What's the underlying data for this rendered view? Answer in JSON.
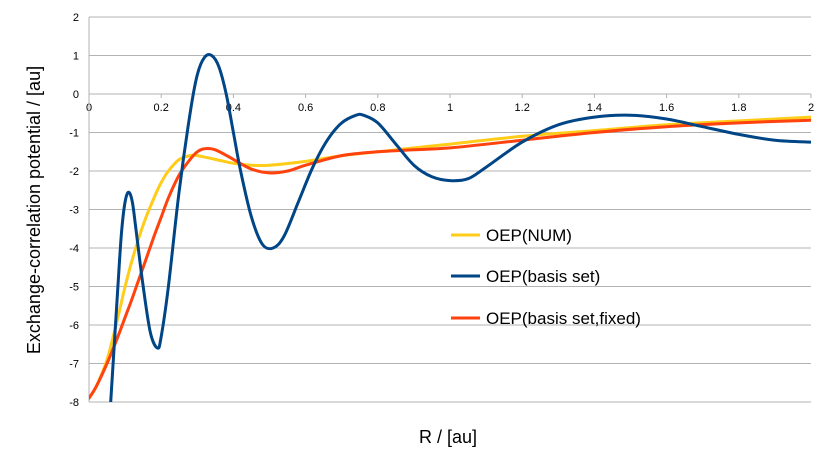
{
  "chart_data": {
    "type": "line",
    "title": "",
    "xlabel": "R / [au]",
    "ylabel": "Exchange-correlation potential / [au]",
    "xlim": [
      0,
      2
    ],
    "ylim": [
      -8,
      2
    ],
    "x_ticks": [
      "0",
      "0.2",
      "0.4",
      "0.6",
      "0.8",
      "1",
      "1.2",
      "1.4",
      "1.6",
      "1.8",
      "2"
    ],
    "y_ticks": [
      "2",
      "1",
      "0",
      "-1",
      "-2",
      "-3",
      "-4",
      "-5",
      "-6",
      "-7",
      "-8"
    ],
    "grid": "horizontal",
    "legend_position": "center-right",
    "series": [
      {
        "name": "OEP(NUM)",
        "color": "#ffcc1a",
        "x": [
          0,
          0.02,
          0.05,
          0.08,
          0.1,
          0.12,
          0.15,
          0.18,
          0.2,
          0.22,
          0.25,
          0.28,
          0.3,
          0.35,
          0.4,
          0.45,
          0.5,
          0.6,
          0.7,
          0.8,
          0.9,
          1.0,
          1.2,
          1.4,
          1.6,
          1.8,
          2.0
        ],
        "y": [
          -7.9,
          -7.6,
          -6.9,
          -5.8,
          -5.0,
          -4.3,
          -3.4,
          -2.7,
          -2.3,
          -2.0,
          -1.7,
          -1.6,
          -1.6,
          -1.7,
          -1.8,
          -1.85,
          -1.85,
          -1.75,
          -1.6,
          -1.5,
          -1.4,
          -1.3,
          -1.1,
          -0.95,
          -0.8,
          -0.7,
          -0.6
        ]
      },
      {
        "name": "OEP(basis set)",
        "color": "#004586",
        "x": [
          0.06,
          0.07,
          0.08,
          0.09,
          0.1,
          0.11,
          0.12,
          0.13,
          0.15,
          0.17,
          0.19,
          0.2,
          0.22,
          0.25,
          0.28,
          0.3,
          0.32,
          0.34,
          0.36,
          0.38,
          0.4,
          0.42,
          0.45,
          0.48,
          0.51,
          0.54,
          0.58,
          0.62,
          0.66,
          0.7,
          0.74,
          0.76,
          0.8,
          0.85,
          0.9,
          0.95,
          1.0,
          1.05,
          1.1,
          1.2,
          1.3,
          1.4,
          1.5,
          1.6,
          1.7,
          1.8,
          1.9,
          2.0
        ],
        "y": [
          -8.0,
          -6.5,
          -5.0,
          -3.6,
          -2.8,
          -2.55,
          -2.8,
          -3.5,
          -5.0,
          -6.2,
          -6.6,
          -6.3,
          -5.0,
          -2.5,
          -0.5,
          0.5,
          0.95,
          1.0,
          0.7,
          0.0,
          -1.0,
          -2.0,
          -3.2,
          -3.9,
          -4.0,
          -3.7,
          -2.8,
          -1.9,
          -1.2,
          -0.75,
          -0.55,
          -0.55,
          -0.75,
          -1.3,
          -1.85,
          -2.15,
          -2.25,
          -2.2,
          -1.9,
          -1.25,
          -0.8,
          -0.6,
          -0.55,
          -0.65,
          -0.85,
          -1.05,
          -1.2,
          -1.25
        ]
      },
      {
        "name": "OEP(basis set,fixed)",
        "color": "#ff420e",
        "x": [
          0,
          0.02,
          0.05,
          0.08,
          0.1,
          0.12,
          0.15,
          0.18,
          0.2,
          0.22,
          0.25,
          0.28,
          0.3,
          0.32,
          0.35,
          0.4,
          0.45,
          0.5,
          0.55,
          0.6,
          0.7,
          0.8,
          0.9,
          1.0,
          1.2,
          1.4,
          1.6,
          1.8,
          2.0
        ],
        "y": [
          -7.9,
          -7.6,
          -7.0,
          -6.3,
          -5.8,
          -5.3,
          -4.5,
          -3.7,
          -3.2,
          -2.7,
          -2.1,
          -1.7,
          -1.5,
          -1.42,
          -1.45,
          -1.7,
          -1.95,
          -2.05,
          -2.0,
          -1.85,
          -1.6,
          -1.5,
          -1.45,
          -1.4,
          -1.2,
          -1.0,
          -0.85,
          -0.75,
          -0.68
        ]
      }
    ]
  }
}
